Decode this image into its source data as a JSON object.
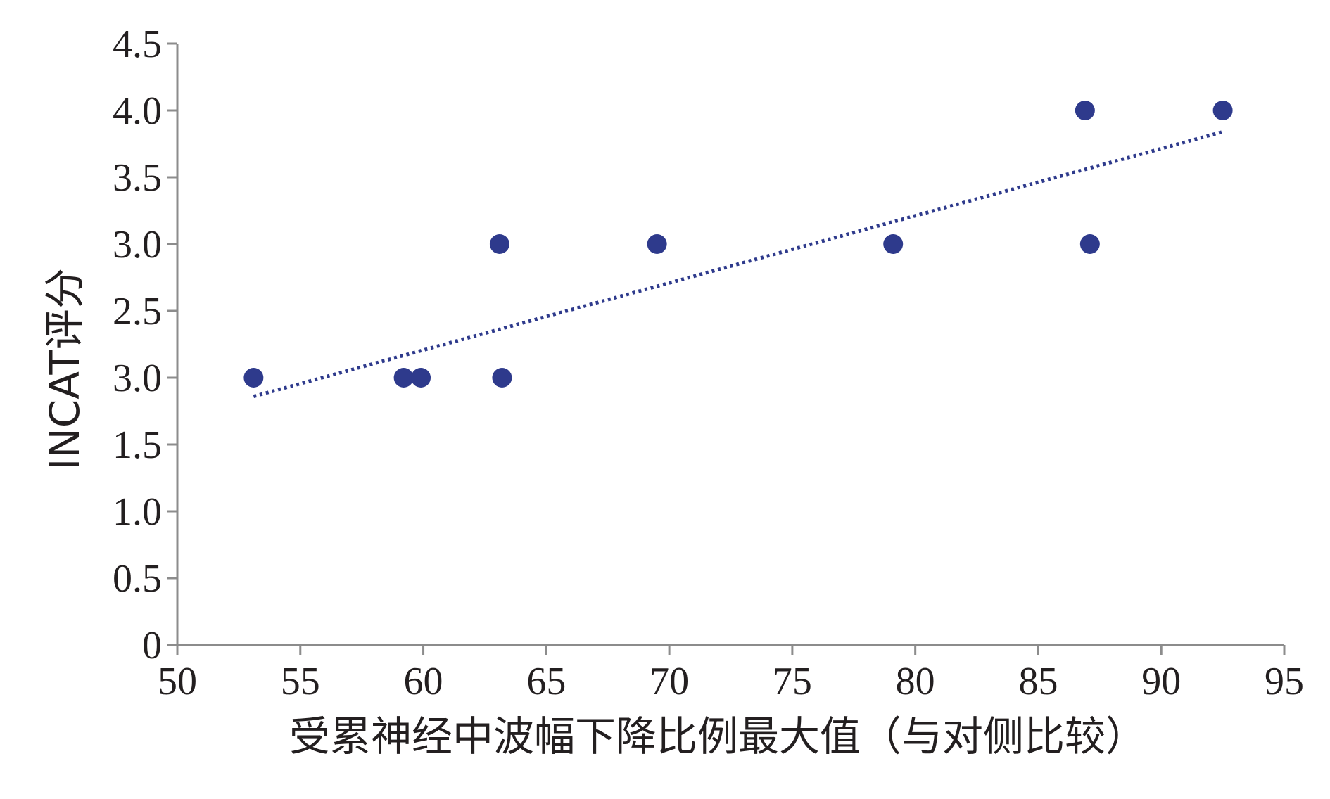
{
  "chart_data": {
    "type": "scatter",
    "title": "",
    "xlabel": "受累神经中波幅下降比例最大值（与对侧比较）",
    "ylabel": "INCAT评分",
    "xlim": [
      50,
      95
    ],
    "ylim": [
      0,
      4.5
    ],
    "x_ticks": [
      "50",
      "55",
      "60",
      "65",
      "70",
      "75",
      "80",
      "85",
      "90",
      "95"
    ],
    "y_ticks": [
      "0",
      "0.5",
      "1.0",
      "1.5",
      "2.0",
      "2.5",
      "3.0",
      "3.5",
      "4.0",
      "4.5"
    ],
    "y_tick_text_overrides": {
      "2.0": "3.0"
    },
    "grid": false,
    "legend": "none",
    "colors": {
      "points": "#2e3a8c",
      "trendline": "#2e3a8c",
      "axis": "#8c8c8c",
      "text": "#231f20"
    },
    "series": [
      {
        "points": [
          {
            "x": 53.1,
            "y": 2.0
          },
          {
            "x": 59.2,
            "y": 2.0
          },
          {
            "x": 59.9,
            "y": 2.0
          },
          {
            "x": 63.1,
            "y": 3.0
          },
          {
            "x": 63.2,
            "y": 2.0
          },
          {
            "x": 69.5,
            "y": 3.0
          },
          {
            "x": 79.1,
            "y": 3.0
          },
          {
            "x": 86.9,
            "y": 4.0
          },
          {
            "x": 87.1,
            "y": 3.0
          },
          {
            "x": 92.5,
            "y": 4.0
          }
        ]
      }
    ],
    "trendline": {
      "style": "dotted",
      "x": [
        53.1,
        92.5
      ],
      "y": [
        1.86,
        3.84
      ]
    }
  }
}
